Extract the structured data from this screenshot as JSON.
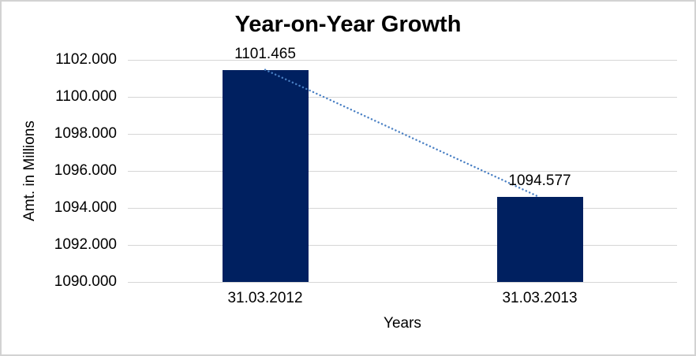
{
  "chart_data": {
    "type": "bar",
    "title": "Year-on-Year Growth",
    "xlabel": "Years",
    "ylabel": "Amt. in Millions",
    "categories": [
      "31.03.2012",
      "31.03.2013"
    ],
    "series": [
      {
        "name": "Amt. in Millions",
        "values": [
          1101.465,
          1094.577
        ]
      }
    ],
    "data_labels": [
      "1101.465",
      "1094.577"
    ],
    "ylim": [
      1090,
      1102
    ],
    "ytick_step": 2,
    "yticks": [
      {
        "value": 1102,
        "label": "1102.000"
      },
      {
        "value": 1100,
        "label": "1100.000"
      },
      {
        "value": 1098,
        "label": "1098.000"
      },
      {
        "value": 1096,
        "label": "1096.000"
      },
      {
        "value": 1094,
        "label": "1094.000"
      },
      {
        "value": 1092,
        "label": "1092.000"
      },
      {
        "value": 1090,
        "label": "1090.000"
      }
    ],
    "grid": true,
    "legend": "none",
    "trendline": {
      "type": "linear",
      "style": "dotted",
      "color": "#4a80c4",
      "points": [
        1101.465,
        1094.577
      ]
    },
    "colors": {
      "bar": "#002060",
      "gridline": "#d6d6d6",
      "axis_line": "#d6d6d6",
      "text": "#000000",
      "background": "#ffffff",
      "frame_border": "#d2d2d2"
    }
  }
}
